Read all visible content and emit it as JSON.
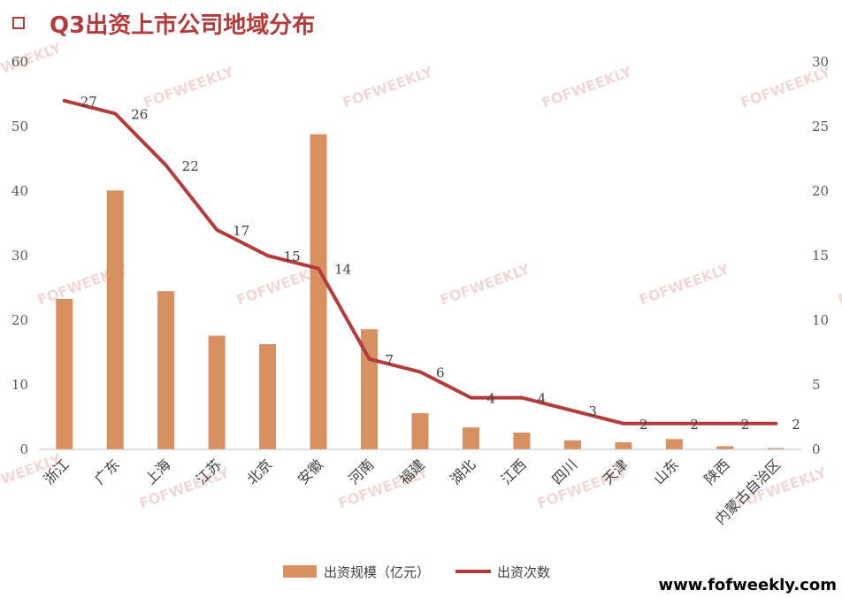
{
  "title": "Q3出资上市公司地域分布",
  "watermark": "FOFWEEKLY",
  "site_url": "www.fofweekly.com",
  "colors": {
    "bar": "#d89060",
    "line": "#b33b3b",
    "title": "#b33b3b"
  },
  "chart_data": {
    "type": "bar+line",
    "categories": [
      "浙江",
      "广东",
      "上海",
      "江苏",
      "北京",
      "安徽",
      "河南",
      "福建",
      "湖北",
      "江西",
      "四川",
      "天津",
      "山东",
      "陕西",
      "内蒙古自治区"
    ],
    "series": [
      {
        "name": "出资规模（亿元）",
        "type": "bar",
        "axis": "left",
        "values": [
          23.3,
          40.1,
          24.5,
          17.6,
          16.3,
          48.8,
          18.6,
          5.6,
          3.4,
          2.6,
          1.4,
          1.1,
          1.6,
          0.5,
          0.2
        ]
      },
      {
        "name": "出资次数",
        "type": "line",
        "axis": "right",
        "values": [
          27,
          26,
          22,
          17,
          15,
          14,
          7,
          6,
          4,
          4,
          3,
          2,
          2,
          2,
          2
        ],
        "data_labels": [
          "27",
          "26",
          "22",
          "17",
          "15",
          "14",
          "7",
          "6",
          "4",
          "4",
          "3",
          "2",
          "2",
          "2",
          "2"
        ]
      }
    ],
    "y_left": {
      "range": [
        0,
        60
      ],
      "ticks": [
        "0",
        "10",
        "20",
        "30",
        "40",
        "50",
        "60"
      ]
    },
    "y_right": {
      "range": [
        0,
        30
      ],
      "ticks": [
        "0",
        "5",
        "10",
        "15",
        "20",
        "25",
        "30"
      ]
    },
    "grid": false,
    "legend": "bottom"
  }
}
